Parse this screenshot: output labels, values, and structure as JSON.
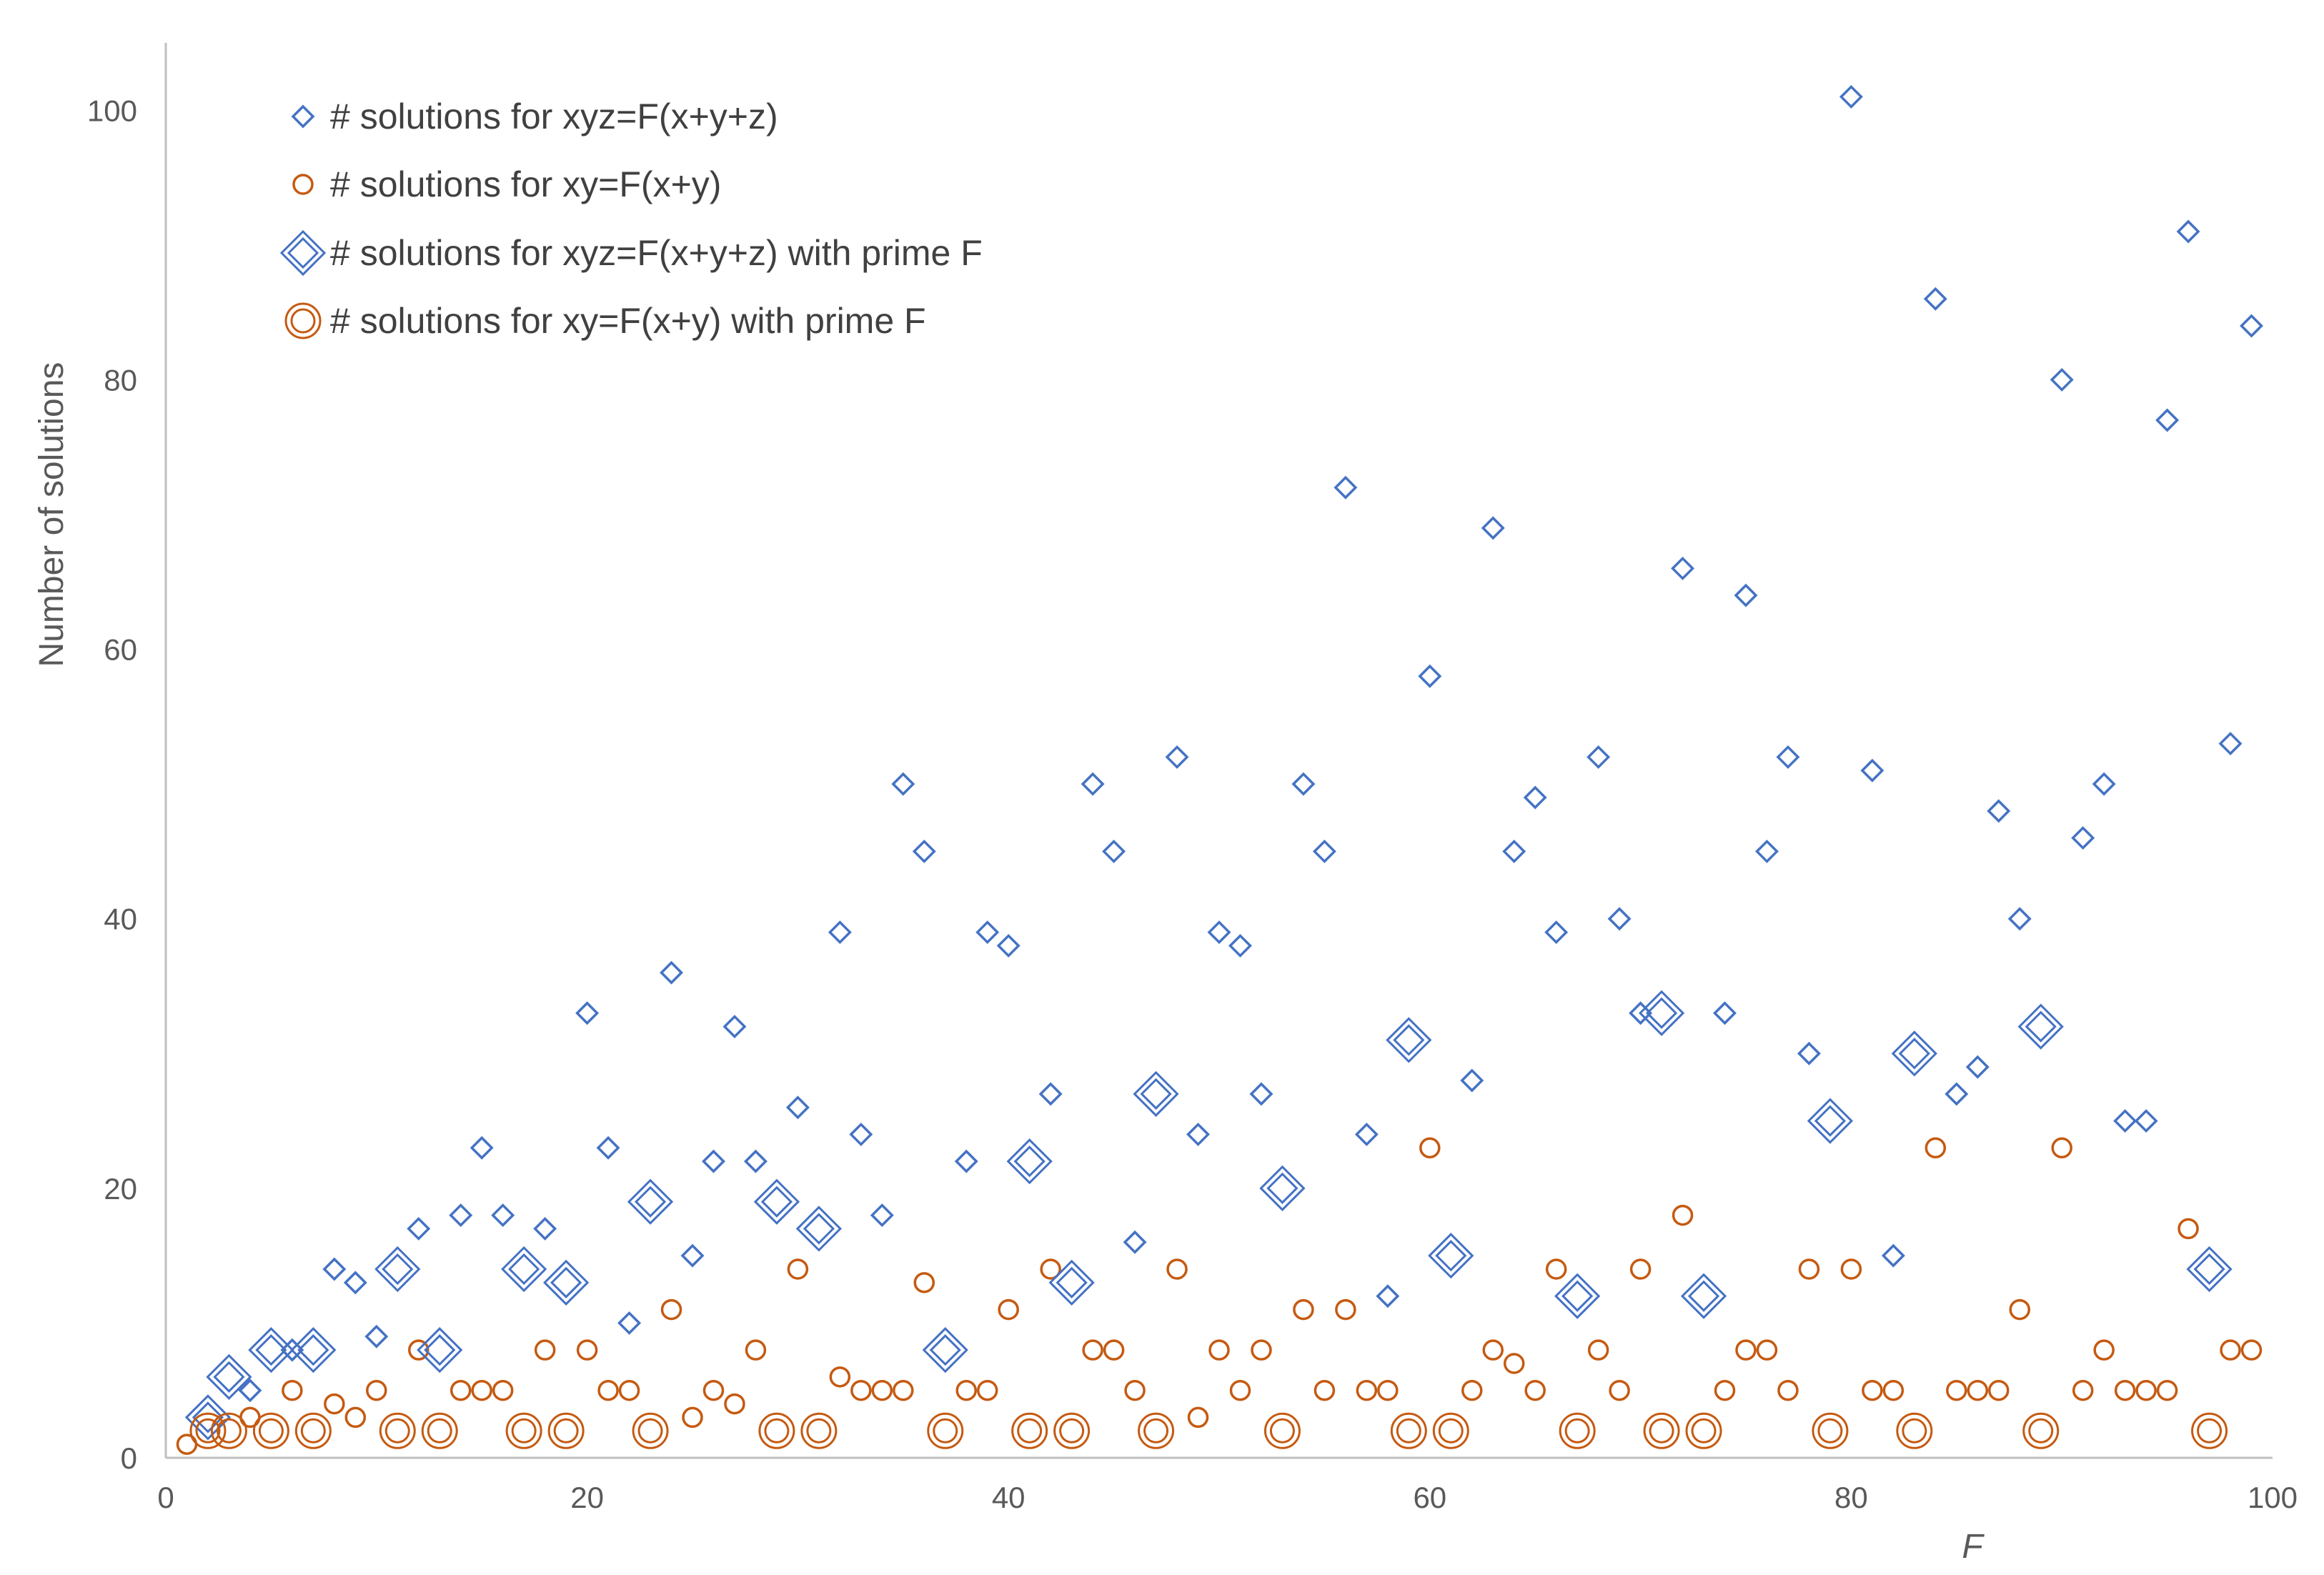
{
  "chart_data": {
    "type": "scatter",
    "xlabel": "F",
    "ylabel": "Number of solutions",
    "xlim": [
      0,
      100
    ],
    "ylim": [
      0,
      105
    ],
    "x_ticks": [
      0,
      20,
      40,
      60,
      80,
      100
    ],
    "y_ticks": [
      0,
      20,
      40,
      60,
      80,
      100
    ],
    "grid": false,
    "legend_position": "top-left",
    "colors": {
      "blue": "#4472C4",
      "orange": "#C55A11",
      "axis": "#BFBFBF",
      "text": "#595959"
    },
    "series": [
      {
        "name": "# solutions for xyz=F(x+y+z)",
        "marker": "diamond-small",
        "color": "#4472C4",
        "points": [
          [
            4,
            5
          ],
          [
            6,
            8
          ],
          [
            8,
            14
          ],
          [
            9,
            13
          ],
          [
            10,
            9
          ],
          [
            12,
            17
          ],
          [
            14,
            18
          ],
          [
            15,
            23
          ],
          [
            16,
            18
          ],
          [
            18,
            17
          ],
          [
            20,
            33
          ],
          [
            21,
            23
          ],
          [
            22,
            10
          ],
          [
            24,
            36
          ],
          [
            25,
            15
          ],
          [
            26,
            22
          ],
          [
            27,
            32
          ],
          [
            28,
            22
          ],
          [
            30,
            26
          ],
          [
            32,
            39
          ],
          [
            33,
            24
          ],
          [
            34,
            18
          ],
          [
            35,
            50
          ],
          [
            36,
            45
          ],
          [
            38,
            22
          ],
          [
            39,
            39
          ],
          [
            40,
            38
          ],
          [
            42,
            27
          ],
          [
            44,
            50
          ],
          [
            45,
            45
          ],
          [
            46,
            16
          ],
          [
            48,
            52
          ],
          [
            49,
            24
          ],
          [
            50,
            39
          ],
          [
            51,
            38
          ],
          [
            52,
            27
          ],
          [
            54,
            50
          ],
          [
            55,
            45
          ],
          [
            56,
            72
          ],
          [
            57,
            24
          ],
          [
            58,
            12
          ],
          [
            60,
            58
          ],
          [
            62,
            28
          ],
          [
            63,
            69
          ],
          [
            64,
            45
          ],
          [
            65,
            49
          ],
          [
            66,
            39
          ],
          [
            68,
            52
          ],
          [
            69,
            40
          ],
          [
            70,
            33
          ],
          [
            72,
            66
          ],
          [
            74,
            33
          ],
          [
            75,
            64
          ],
          [
            76,
            45
          ],
          [
            77,
            52
          ],
          [
            78,
            30
          ],
          [
            80,
            101
          ],
          [
            81,
            51
          ],
          [
            82,
            15
          ],
          [
            84,
            86
          ],
          [
            85,
            27
          ],
          [
            86,
            29
          ],
          [
            87,
            48
          ],
          [
            88,
            40
          ],
          [
            90,
            80
          ],
          [
            91,
            46
          ],
          [
            92,
            50
          ],
          [
            93,
            25
          ],
          [
            94,
            25
          ],
          [
            95,
            77
          ],
          [
            96,
            91
          ],
          [
            98,
            53
          ],
          [
            99,
            84
          ]
        ]
      },
      {
        "name": "# solutions for xy=F(x+y)",
        "marker": "circle-small",
        "color": "#C55A11",
        "points": [
          [
            1,
            1
          ],
          [
            4,
            3
          ],
          [
            6,
            5
          ],
          [
            8,
            4
          ],
          [
            9,
            3
          ],
          [
            10,
            5
          ],
          [
            12,
            8
          ],
          [
            14,
            5
          ],
          [
            15,
            5
          ],
          [
            16,
            5
          ],
          [
            18,
            8
          ],
          [
            20,
            8
          ],
          [
            21,
            5
          ],
          [
            22,
            5
          ],
          [
            24,
            11
          ],
          [
            25,
            3
          ],
          [
            26,
            5
          ],
          [
            27,
            4
          ],
          [
            28,
            8
          ],
          [
            30,
            14
          ],
          [
            32,
            6
          ],
          [
            33,
            5
          ],
          [
            34,
            5
          ],
          [
            35,
            5
          ],
          [
            36,
            13
          ],
          [
            38,
            5
          ],
          [
            39,
            5
          ],
          [
            40,
            11
          ],
          [
            42,
            14
          ],
          [
            44,
            8
          ],
          [
            45,
            8
          ],
          [
            46,
            5
          ],
          [
            48,
            14
          ],
          [
            49,
            3
          ],
          [
            50,
            8
          ],
          [
            51,
            5
          ],
          [
            52,
            8
          ],
          [
            54,
            11
          ],
          [
            55,
            5
          ],
          [
            56,
            11
          ],
          [
            57,
            5
          ],
          [
            58,
            5
          ],
          [
            60,
            23
          ],
          [
            62,
            5
          ],
          [
            63,
            8
          ],
          [
            64,
            7
          ],
          [
            65,
            5
          ],
          [
            66,
            14
          ],
          [
            68,
            8
          ],
          [
            69,
            5
          ],
          [
            70,
            14
          ],
          [
            72,
            18
          ],
          [
            74,
            5
          ],
          [
            75,
            8
          ],
          [
            76,
            8
          ],
          [
            77,
            5
          ],
          [
            78,
            14
          ],
          [
            80,
            14
          ],
          [
            81,
            5
          ],
          [
            82,
            5
          ],
          [
            84,
            23
          ],
          [
            85,
            5
          ],
          [
            86,
            5
          ],
          [
            87,
            5
          ],
          [
            88,
            11
          ],
          [
            90,
            23
          ],
          [
            91,
            5
          ],
          [
            92,
            8
          ],
          [
            93,
            5
          ],
          [
            94,
            5
          ],
          [
            95,
            5
          ],
          [
            96,
            17
          ],
          [
            98,
            8
          ],
          [
            99,
            8
          ]
        ]
      },
      {
        "name": "# solutions for xyz=F(x+y+z) with prime F",
        "marker": "diamond-large",
        "color": "#4472C4",
        "points": [
          [
            2,
            3
          ],
          [
            3,
            6
          ],
          [
            5,
            8
          ],
          [
            7,
            8
          ],
          [
            11,
            14
          ],
          [
            13,
            8
          ],
          [
            17,
            14
          ],
          [
            19,
            13
          ],
          [
            23,
            19
          ],
          [
            29,
            19
          ],
          [
            31,
            17
          ],
          [
            37,
            8
          ],
          [
            41,
            22
          ],
          [
            43,
            13
          ],
          [
            47,
            27
          ],
          [
            53,
            20
          ],
          [
            59,
            31
          ],
          [
            61,
            15
          ],
          [
            67,
            12
          ],
          [
            71,
            33
          ],
          [
            73,
            12
          ],
          [
            79,
            25
          ],
          [
            83,
            30
          ],
          [
            89,
            32
          ],
          [
            97,
            14
          ]
        ]
      },
      {
        "name": "# solutions for xy=F(x+y) with prime F",
        "marker": "circle-large",
        "color": "#C55A11",
        "points": [
          [
            2,
            2
          ],
          [
            3,
            2
          ],
          [
            5,
            2
          ],
          [
            7,
            2
          ],
          [
            11,
            2
          ],
          [
            13,
            2
          ],
          [
            17,
            2
          ],
          [
            19,
            2
          ],
          [
            23,
            2
          ],
          [
            29,
            2
          ],
          [
            31,
            2
          ],
          [
            37,
            2
          ],
          [
            41,
            2
          ],
          [
            43,
            2
          ],
          [
            47,
            2
          ],
          [
            53,
            2
          ],
          [
            59,
            2
          ],
          [
            61,
            2
          ],
          [
            67,
            2
          ],
          [
            71,
            2
          ],
          [
            73,
            2
          ],
          [
            79,
            2
          ],
          [
            83,
            2
          ],
          [
            89,
            2
          ],
          [
            97,
            2
          ]
        ]
      }
    ]
  }
}
